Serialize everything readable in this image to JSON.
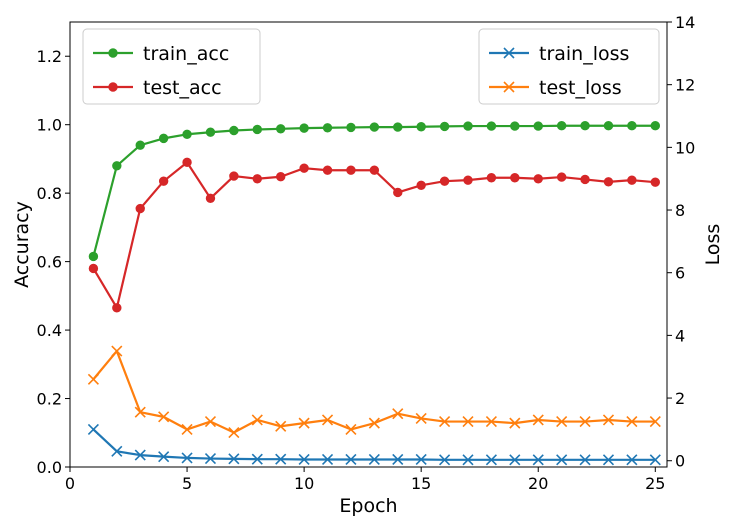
{
  "chart_data": {
    "type": "line",
    "xlabel": "Epoch",
    "ylabel_left": "Accuracy",
    "ylabel_right": "Loss",
    "xlim": [
      0,
      25.5
    ],
    "ylim_left": [
      0,
      1.3
    ],
    "ylim_right": [
      -0.2,
      14
    ],
    "xticks": [
      0,
      5,
      10,
      15,
      20,
      25
    ],
    "yticks_left": [
      0.0,
      0.2,
      0.4,
      0.6,
      0.8,
      1.0,
      1.2
    ],
    "yticks_right": [
      0,
      2,
      4,
      6,
      8,
      10,
      12,
      14
    ],
    "grid": false,
    "legend_left": {
      "placement": "upper-left",
      "entries": [
        "train_acc",
        "test_acc"
      ]
    },
    "legend_right": {
      "placement": "upper-right",
      "entries": [
        "train_loss",
        "test_loss"
      ]
    },
    "x": [
      1,
      2,
      3,
      4,
      5,
      6,
      7,
      8,
      9,
      10,
      11,
      12,
      13,
      14,
      15,
      16,
      17,
      18,
      19,
      20,
      21,
      22,
      23,
      24,
      25
    ],
    "series": [
      {
        "name": "train_acc",
        "axis": "left",
        "color": "#2ca02c",
        "marker": "circle",
        "values": [
          0.615,
          0.88,
          0.94,
          0.96,
          0.972,
          0.978,
          0.983,
          0.986,
          0.988,
          0.99,
          0.991,
          0.992,
          0.993,
          0.993,
          0.994,
          0.995,
          0.996,
          0.996,
          0.996,
          0.996,
          0.997,
          0.997,
          0.997,
          0.997,
          0.997
        ]
      },
      {
        "name": "test_acc",
        "axis": "left",
        "color": "#d62728",
        "marker": "circle",
        "values": [
          0.58,
          0.465,
          0.755,
          0.835,
          0.89,
          0.785,
          0.85,
          0.842,
          0.848,
          0.873,
          0.867,
          0.867,
          0.867,
          0.802,
          0.823,
          0.835,
          0.838,
          0.845,
          0.845,
          0.842,
          0.847,
          0.84,
          0.833,
          0.838,
          0.832
        ]
      },
      {
        "name": "train_loss",
        "axis": "right",
        "color": "#1f77b4",
        "marker": "x",
        "values": [
          1.0,
          0.3,
          0.18,
          0.13,
          0.09,
          0.07,
          0.06,
          0.05,
          0.05,
          0.04,
          0.04,
          0.04,
          0.04,
          0.04,
          0.04,
          0.03,
          0.03,
          0.03,
          0.03,
          0.03,
          0.03,
          0.03,
          0.03,
          0.03,
          0.03
        ]
      },
      {
        "name": "test_loss",
        "axis": "right",
        "color": "#ff7f0e",
        "marker": "x",
        "values": [
          2.6,
          3.5,
          1.55,
          1.4,
          1.0,
          1.25,
          0.9,
          1.3,
          1.1,
          1.2,
          1.3,
          1.0,
          1.2,
          1.5,
          1.35,
          1.25,
          1.25,
          1.25,
          1.2,
          1.3,
          1.25,
          1.25,
          1.3,
          1.25,
          1.25
        ]
      }
    ]
  }
}
